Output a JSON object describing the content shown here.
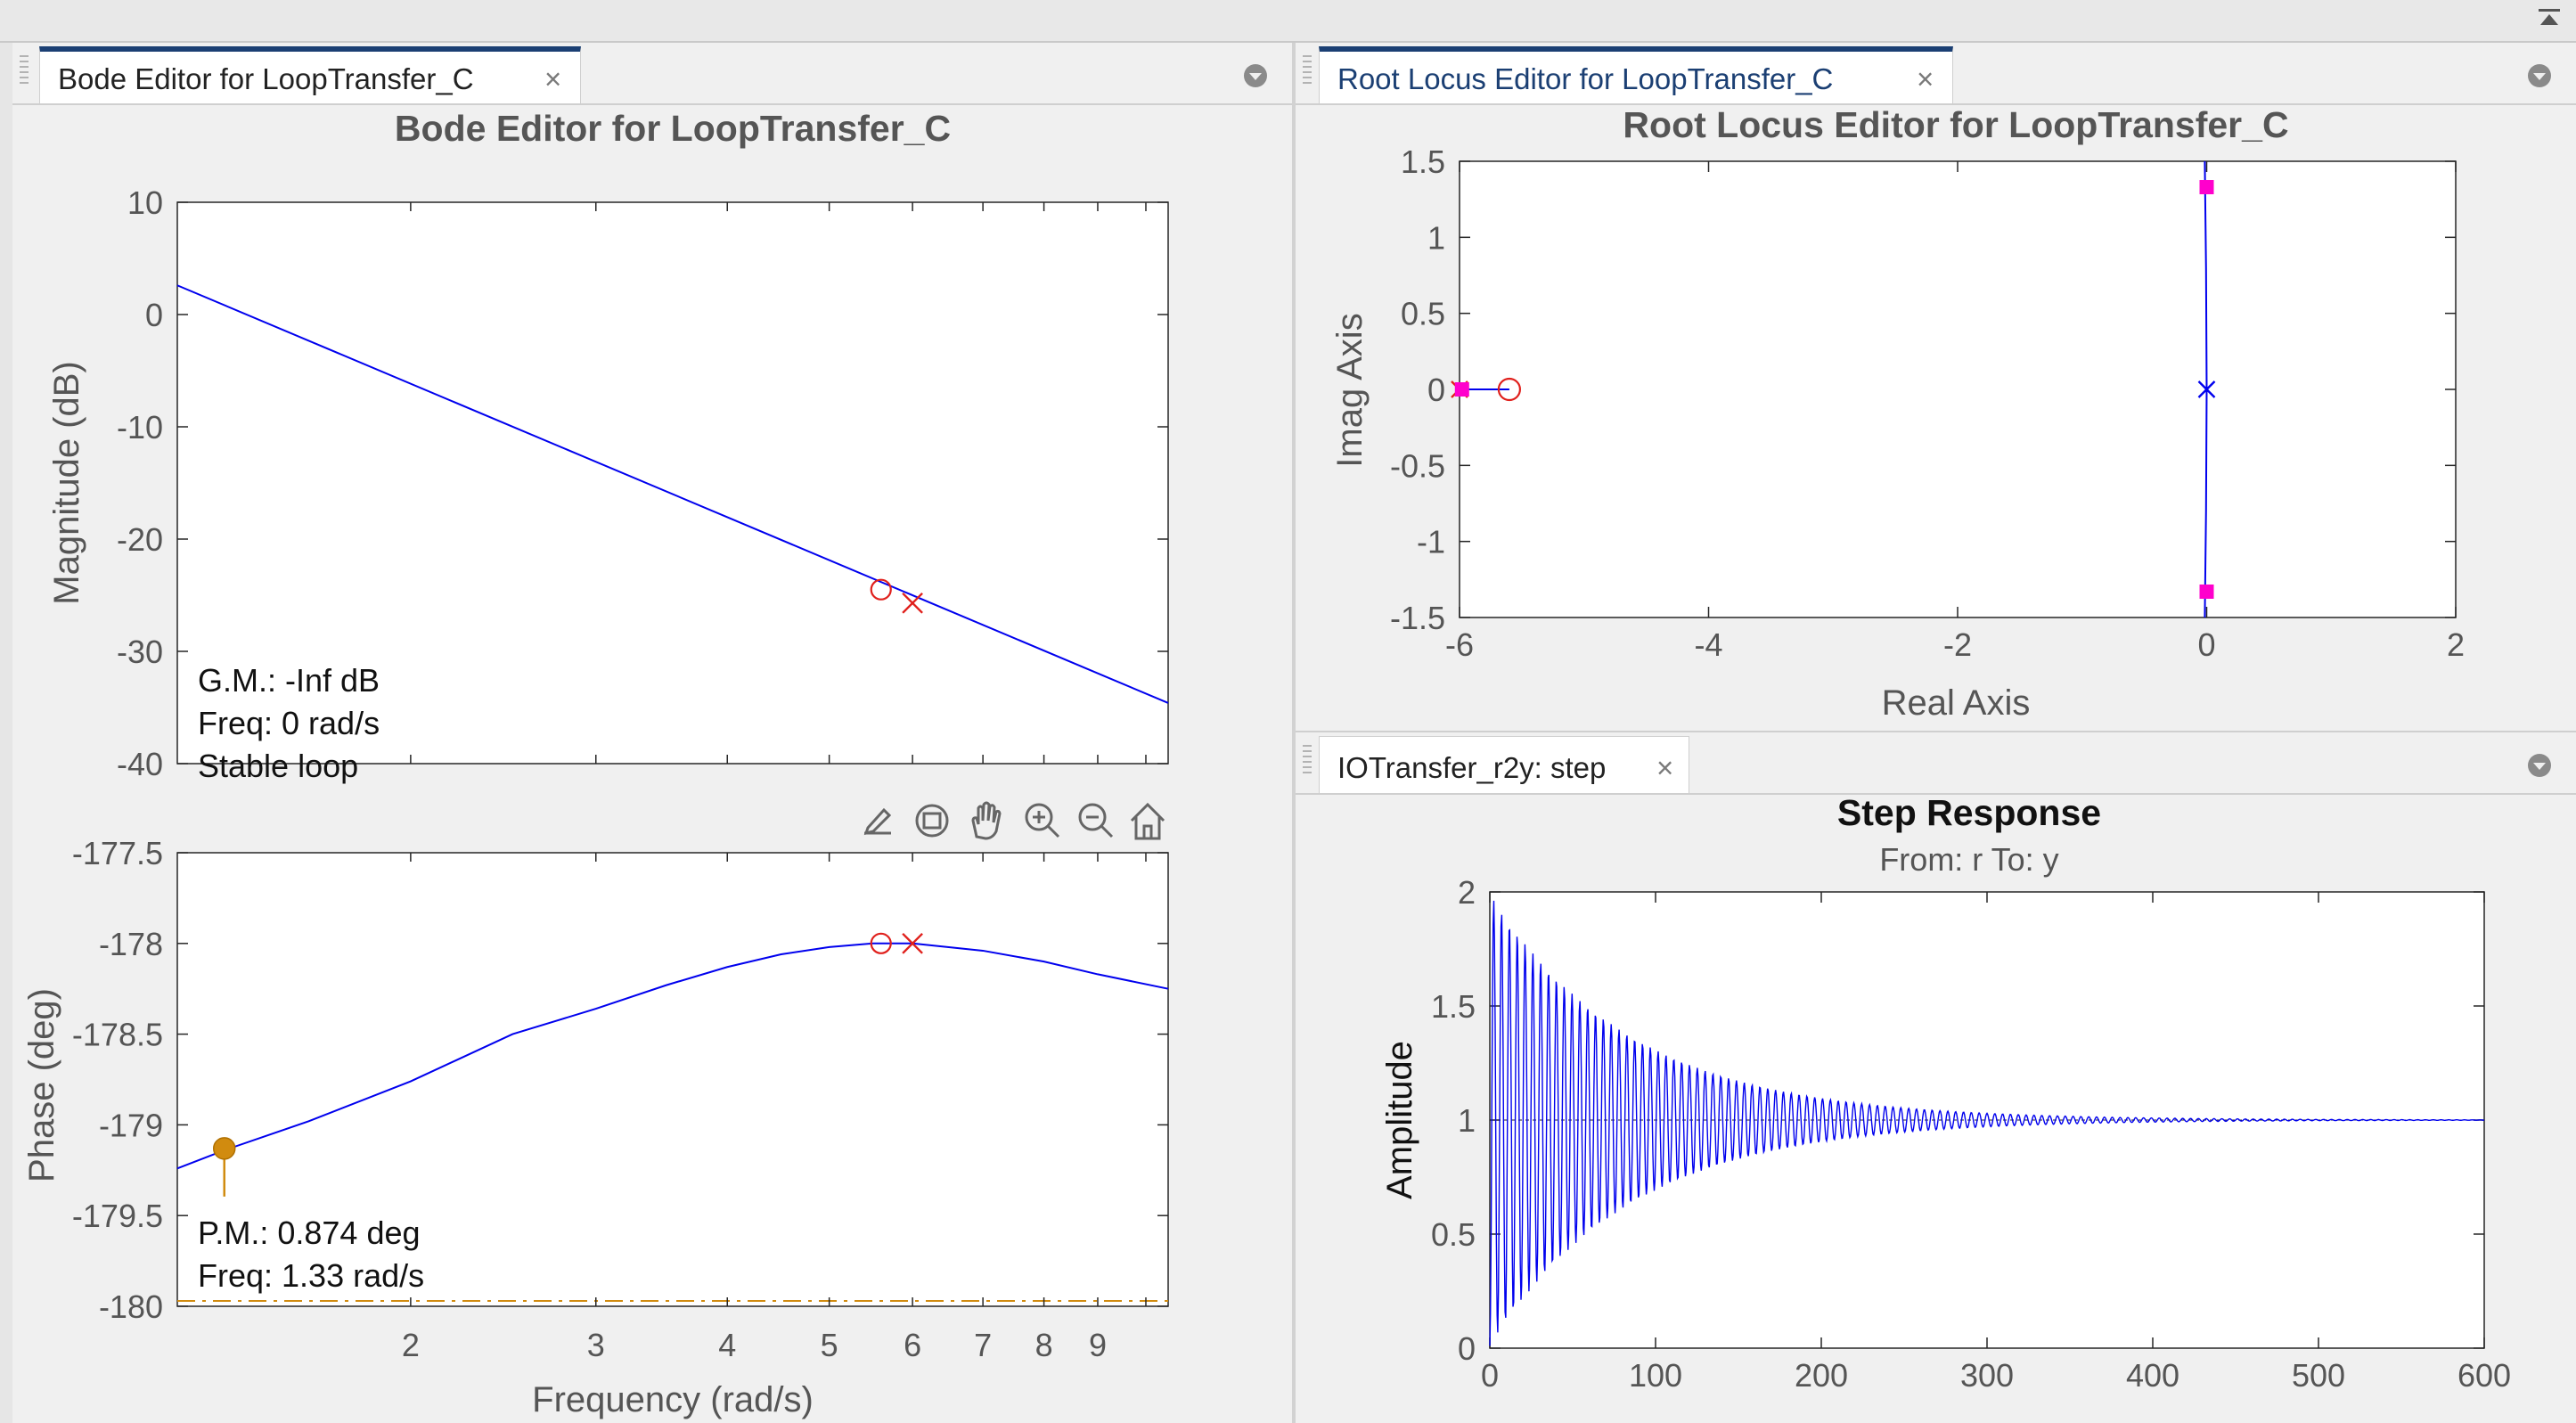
{
  "bode_tab": {
    "label": "Bode Editor for LoopTransfer_C",
    "close": "×"
  },
  "rlocus_tab": {
    "label": "Root Locus Editor for LoopTransfer_C",
    "close": "×"
  },
  "step_tab": {
    "label": "IOTransfer_r2y: step",
    "close": "×"
  },
  "colors": {
    "accent": "#1b3f73",
    "curve": "#0000ee",
    "pole_zero": "#e0201c",
    "closed_loop": "#ff00cc",
    "margin_marker": "#d18b0f"
  },
  "toolbar_icons": [
    "edit-icon",
    "rotate-icon",
    "pan-hand-icon",
    "zoom-in-icon",
    "zoom-out-icon",
    "home-icon"
  ],
  "bode": {
    "title": "Bode Editor for LoopTransfer_C",
    "mag_ylabel": "Magnitude (dB)",
    "mag_ticks": [
      "10",
      "0",
      "-10",
      "-20",
      "-30",
      "-40"
    ],
    "gm_text": "G.M.: -Inf dB",
    "gm_freq": "Freq: 0 rad/s",
    "gm_status": "Stable loop",
    "phase_ylabel": "Phase (deg)",
    "phase_ticks": [
      "-177.5",
      "-178",
      "-178.5",
      "-179",
      "-179.5",
      "-180"
    ],
    "pm_text": "P.M.: 0.874 deg",
    "pm_freq": "Freq: 1.33 rad/s",
    "xlabel": "Frequency (rad/s)",
    "x_ticks": [
      "2",
      "3",
      "4",
      "5",
      "6",
      "7",
      "8",
      "9"
    ]
  },
  "rlocus": {
    "title": "Root Locus Editor for LoopTransfer_C",
    "xlabel": "Real Axis",
    "ylabel": "Imag Axis",
    "x_ticks": [
      "-6",
      "-4",
      "-2",
      "0",
      "2"
    ],
    "y_ticks": [
      "1.5",
      "1",
      "0.5",
      "0",
      "-0.5",
      "-1",
      "-1.5"
    ]
  },
  "step": {
    "title": "Step Response",
    "subtitle": "From: r  To: y",
    "ylabel": "Amplitude",
    "x_ticks": [
      "0",
      "100",
      "200",
      "300",
      "400",
      "500",
      "600"
    ],
    "y_ticks": [
      "2",
      "1.5",
      "1",
      "0.5",
      "0"
    ]
  },
  "chart_data": [
    {
      "type": "line",
      "title": "Bode Editor for LoopTransfer_C",
      "xlabel": "Frequency (rad/s)",
      "ylabel": "Magnitude (dB)",
      "xscale": "log",
      "xlim": [
        1.2,
        10.5
      ],
      "ylim": [
        -40,
        10
      ],
      "series": [
        {
          "x": [
            1.2,
            10.5
          ],
          "y": [
            2.6,
            -34.6
          ]
        }
      ],
      "markers": [
        {
          "kind": "zero",
          "x": 5.6,
          "y": -24.5
        },
        {
          "kind": "pole",
          "x": 6.0,
          "y": -25.7
        }
      ]
    },
    {
      "type": "line",
      "xlabel": "Frequency (rad/s)",
      "ylabel": "Phase (deg)",
      "xscale": "log",
      "xlim": [
        1.2,
        10.5
      ],
      "ylim": [
        -180,
        -177.5
      ],
      "series": [
        {
          "x": [
            1.2,
            1.33,
            1.6,
            2.0,
            2.5,
            3.0,
            3.5,
            4.0,
            4.5,
            5.0,
            5.5,
            6.0,
            7.0,
            8.0,
            9.0,
            10.5
          ],
          "y": [
            -179.24,
            -179.14,
            -178.98,
            -178.76,
            -178.5,
            -178.36,
            -178.23,
            -178.13,
            -178.06,
            -178.02,
            -178.0,
            -178.0,
            -178.04,
            -178.1,
            -178.17,
            -178.25
          ]
        }
      ],
      "markers": [
        {
          "kind": "zero",
          "x": 5.6,
          "y": -178.0
        },
        {
          "kind": "pole",
          "x": 6.0,
          "y": -178.0
        },
        {
          "kind": "phase-margin",
          "x": 1.33,
          "y": -179.13
        }
      ]
    },
    {
      "type": "scatter",
      "title": "Root Locus Editor for LoopTransfer_C",
      "xlabel": "Real Axis",
      "ylabel": "Imag Axis",
      "xlim": [
        -6,
        2
      ],
      "ylim": [
        -1.5,
        1.5
      ],
      "open_loop_poles": [
        [
          -6,
          0
        ],
        [
          0,
          0
        ]
      ],
      "open_loop_zeros": [
        [
          -5.6,
          0
        ]
      ],
      "closed_loop_poles": [
        [
          -5.98,
          0
        ],
        [
          0,
          1.33
        ],
        [
          0,
          -1.33
        ]
      ],
      "locus": [
        {
          "x": [
            -6,
            -5.6
          ],
          "y": [
            0,
            0
          ]
        },
        {
          "x": [
            0,
            -0.005,
            -0.015
          ],
          "y": [
            0,
            0.8,
            1.5
          ]
        },
        {
          "x": [
            0,
            -0.005,
            -0.015
          ],
          "y": [
            0,
            -0.8,
            -1.5
          ]
        }
      ]
    },
    {
      "type": "line",
      "title": "Step Response",
      "subtitle": "From: r  To: y",
      "xlabel": "",
      "ylabel": "Amplitude",
      "xlim": [
        0,
        600
      ],
      "ylim": [
        0,
        2
      ],
      "series": [
        {
          "final_value": 1,
          "peak": 1.99,
          "omega_rad_per_s": 1.33,
          "decay_rate": 0.0117
        }
      ]
    }
  ]
}
